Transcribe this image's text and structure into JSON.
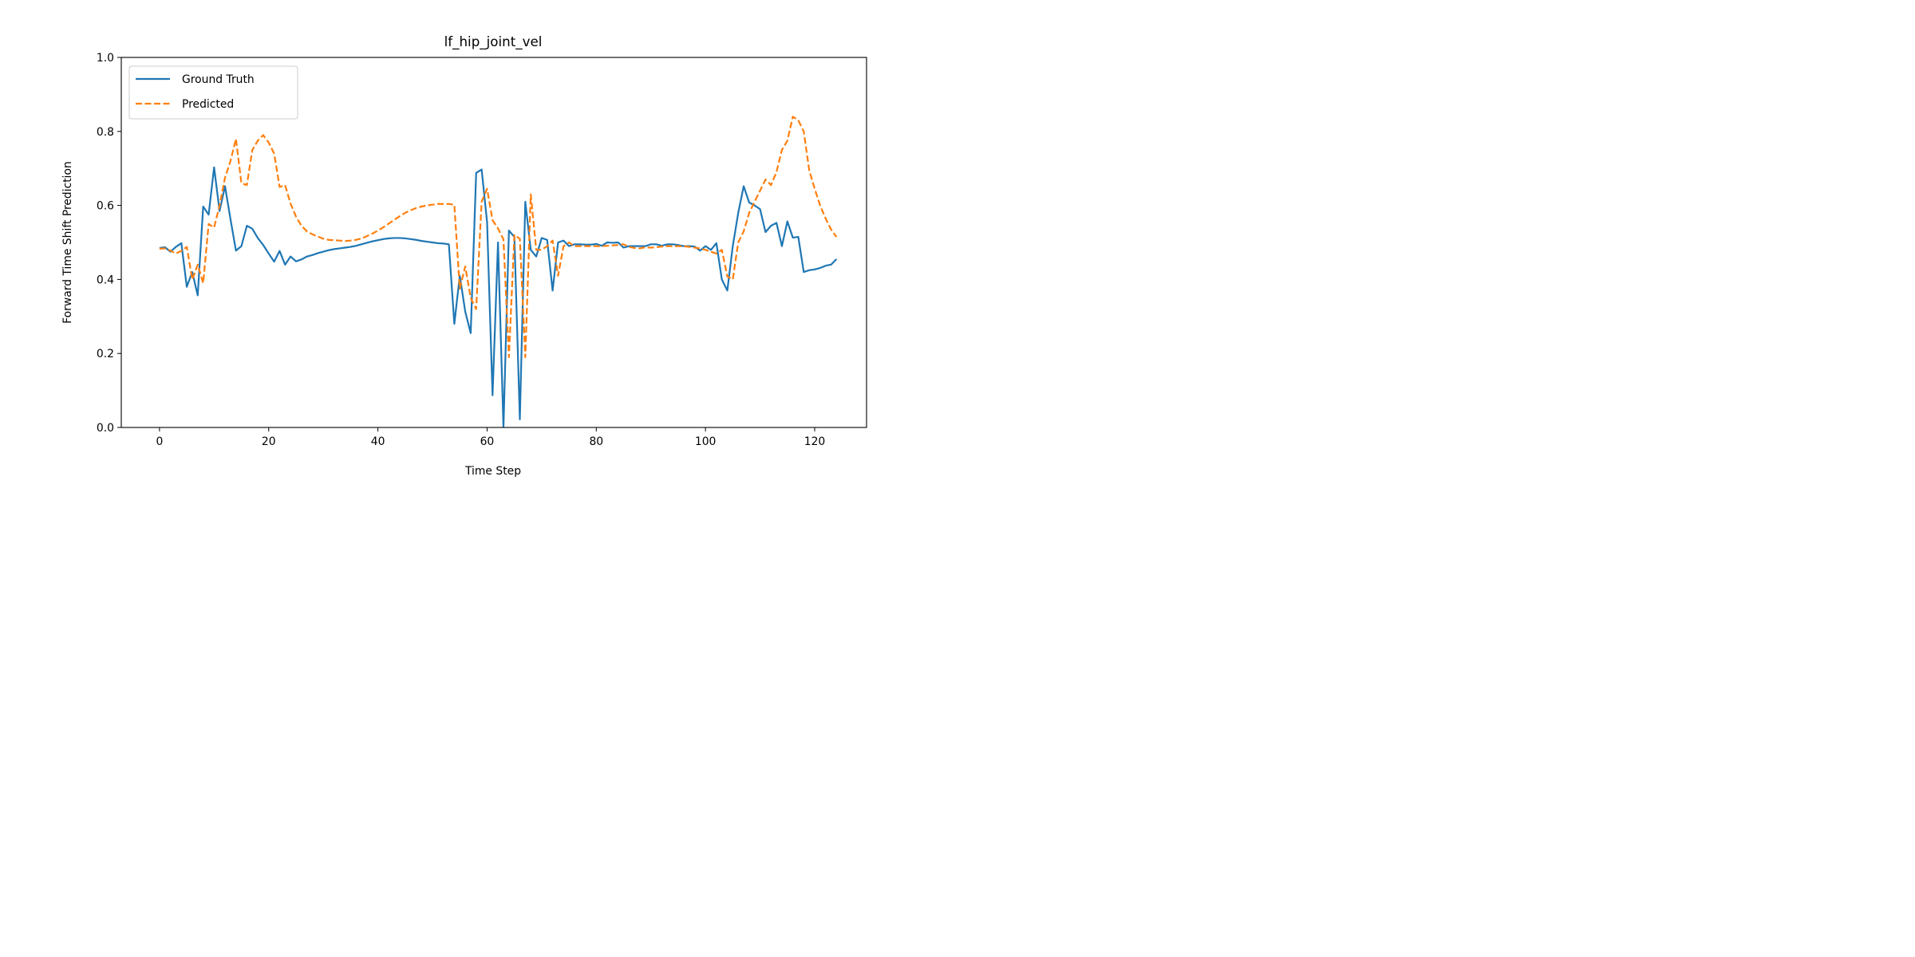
{
  "chart_data": {
    "type": "line",
    "title": "lf_hip_joint_vel",
    "xlabel": "Time Step",
    "ylabel": "Forward Time Shift Prediction",
    "xlim": [
      -7,
      129.5
    ],
    "ylim": [
      0,
      1.0
    ],
    "xticks": [
      0,
      20,
      40,
      60,
      80,
      100,
      120
    ],
    "yticks": [
      0.0,
      0.2,
      0.4,
      0.6,
      0.8,
      1.0
    ],
    "xtick_labels": [
      "0",
      "20",
      "40",
      "60",
      "80",
      "100",
      "120"
    ],
    "ytick_labels": [
      "0.0",
      "0.2",
      "0.4",
      "0.6",
      "0.8",
      "1.0"
    ],
    "grid": false,
    "legend_position": "upper left",
    "series": [
      {
        "name": "Ground Truth",
        "color": "#1f77b4",
        "style": "solid",
        "values": [
          0.485,
          0.487,
          0.475,
          0.488,
          0.498,
          0.38,
          0.42,
          0.357,
          0.597,
          0.575,
          0.703,
          0.585,
          0.652,
          0.563,
          0.478,
          0.49,
          0.545,
          0.537,
          0.512,
          0.493,
          0.47,
          0.448,
          0.477,
          0.44,
          0.462,
          0.449,
          0.454,
          0.462,
          0.466,
          0.471,
          0.475,
          0.479,
          0.482,
          0.484,
          0.486,
          0.488,
          0.491,
          0.495,
          0.499,
          0.503,
          0.506,
          0.509,
          0.511,
          0.512,
          0.512,
          0.511,
          0.509,
          0.507,
          0.504,
          0.502,
          0.5,
          0.498,
          0.497,
          0.495,
          0.28,
          0.41,
          0.313,
          0.255,
          0.688,
          0.697,
          0.555,
          0.087,
          0.5,
          0.0,
          0.532,
          0.515,
          0.022,
          0.61,
          0.48,
          0.462,
          0.512,
          0.507,
          0.37,
          0.5,
          0.505,
          0.49,
          0.495,
          0.495,
          0.494,
          0.494,
          0.496,
          0.491,
          0.5,
          0.499,
          0.5,
          0.486,
          0.49,
          0.49,
          0.49,
          0.49,
          0.495,
          0.495,
          0.491,
          0.495,
          0.495,
          0.493,
          0.49,
          0.49,
          0.489,
          0.478,
          0.49,
          0.48,
          0.498,
          0.4,
          0.37,
          0.49,
          0.58,
          0.652,
          0.608,
          0.6,
          0.59,
          0.528,
          0.545,
          0.553,
          0.49,
          0.557,
          0.513,
          0.515,
          0.42,
          0.425,
          0.427,
          0.431,
          0.437,
          0.44,
          0.455
        ]
      },
      {
        "name": "Predicted",
        "color": "#ff7f0e",
        "style": "dashed",
        "values": [
          0.483,
          0.484,
          0.478,
          0.47,
          0.477,
          0.488,
          0.4,
          0.44,
          0.39,
          0.55,
          0.54,
          0.6,
          0.675,
          0.72,
          0.78,
          0.66,
          0.655,
          0.75,
          0.775,
          0.79,
          0.77,
          0.74,
          0.65,
          0.655,
          0.605,
          0.57,
          0.545,
          0.53,
          0.522,
          0.516,
          0.51,
          0.507,
          0.506,
          0.505,
          0.504,
          0.505,
          0.507,
          0.511,
          0.517,
          0.524,
          0.532,
          0.541,
          0.551,
          0.561,
          0.571,
          0.58,
          0.587,
          0.593,
          0.597,
          0.6,
          0.602,
          0.604,
          0.604,
          0.604,
          0.602,
          0.375,
          0.435,
          0.35,
          0.32,
          0.61,
          0.645,
          0.56,
          0.538,
          0.508,
          0.19,
          0.52,
          0.51,
          0.19,
          0.63,
          0.48,
          0.48,
          0.49,
          0.505,
          0.41,
          0.49,
          0.5,
          0.49,
          0.49,
          0.49,
          0.49,
          0.49,
          0.49,
          0.491,
          0.492,
          0.493,
          0.495,
          0.488,
          0.485,
          0.484,
          0.487,
          0.486,
          0.487,
          0.489,
          0.49,
          0.49,
          0.49,
          0.49,
          0.488,
          0.486,
          0.484,
          0.48,
          0.475,
          0.47,
          0.48,
          0.408,
          0.4,
          0.5,
          0.53,
          0.58,
          0.61,
          0.64,
          0.67,
          0.655,
          0.69,
          0.75,
          0.775,
          0.84,
          0.83,
          0.8,
          0.695,
          0.645,
          0.6,
          0.565,
          0.535,
          0.515
        ]
      }
    ]
  }
}
